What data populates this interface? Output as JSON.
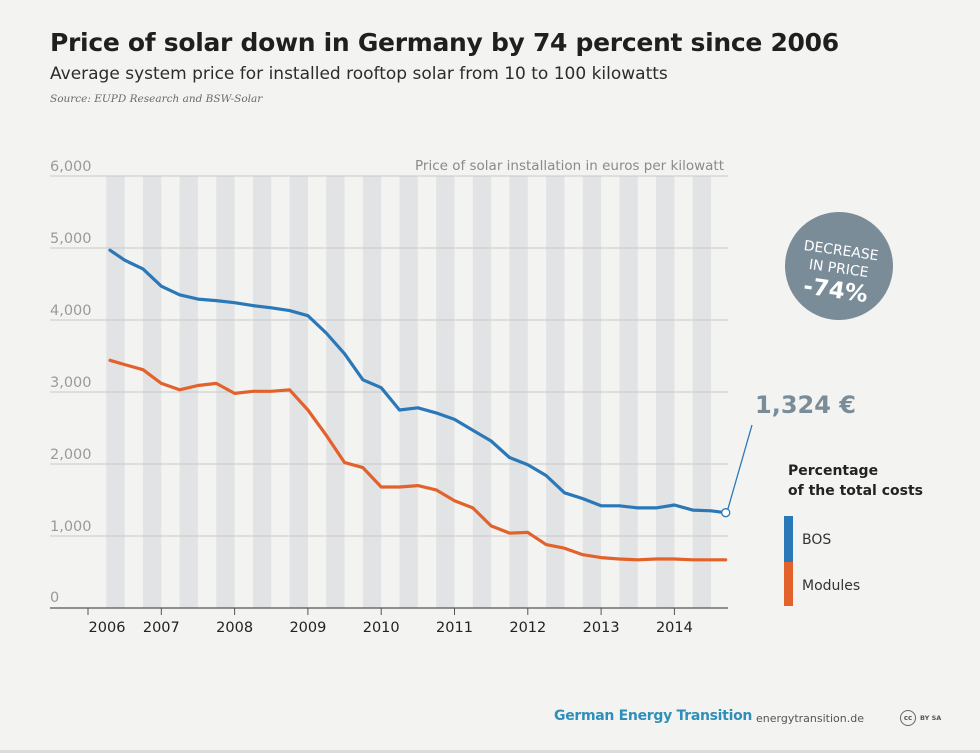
{
  "header": {
    "title": "Price of solar down in Germany by 74 percent since 2006",
    "subtitle": "Average system price for installed rooftop solar from 10 to 100 kilowatts",
    "source": "Source: EUPD Research and BSW-Solar"
  },
  "chart_data": {
    "type": "line",
    "title": "Price of solar down in Germany by 74 percent since 2006",
    "ylabel": "Price of solar installation in euros per kilowatt",
    "ylim": [
      0,
      6000
    ],
    "yticks": [
      "6,000",
      "5,000",
      "4,000",
      "3,000",
      "2,000",
      "1,000",
      "0"
    ],
    "xticks": [
      "2006",
      "2007",
      "2008",
      "2009",
      "2010",
      "2011",
      "2012",
      "2013",
      "2014"
    ],
    "grid": true,
    "legend_title": "Percentage\nof the total costs",
    "legend_position": "right",
    "series": [
      {
        "name": "BOS",
        "color": "#2b78b8",
        "x": [
          2006.3,
          2006.5,
          2006.75,
          2007.0,
          2007.25,
          2007.5,
          2007.75,
          2008.0,
          2008.25,
          2008.5,
          2008.75,
          2009.0,
          2009.25,
          2009.5,
          2009.75,
          2010.0,
          2010.25,
          2010.5,
          2010.75,
          2011.0,
          2011.25,
          2011.5,
          2011.75,
          2012.0,
          2012.25,
          2012.5,
          2012.75,
          2013.0,
          2013.25,
          2013.5,
          2013.75,
          2014.0,
          2014.25,
          2014.5,
          2014.7
        ],
        "values": [
          4970,
          4830,
          4710,
          4470,
          4350,
          4290,
          4270,
          4240,
          4200,
          4170,
          4130,
          4060,
          3820,
          3530,
          3170,
          3060,
          2750,
          2780,
          2710,
          2620,
          2470,
          2320,
          2090,
          1990,
          1840,
          1600,
          1520,
          1420,
          1420,
          1390,
          1390,
          1430,
          1360,
          1350,
          1324
        ]
      },
      {
        "name": "Modules",
        "color": "#e3622c",
        "x": [
          2006.3,
          2006.5,
          2006.75,
          2007.0,
          2007.25,
          2007.5,
          2007.75,
          2008.0,
          2008.25,
          2008.5,
          2008.75,
          2009.0,
          2009.25,
          2009.5,
          2009.75,
          2010.0,
          2010.25,
          2010.5,
          2010.75,
          2011.0,
          2011.25,
          2011.5,
          2011.75,
          2012.0,
          2012.25,
          2012.5,
          2012.75,
          2013.0,
          2013.25,
          2013.5,
          2013.75,
          2014.0,
          2014.25,
          2014.5,
          2014.7
        ],
        "values": [
          3440,
          3380,
          3310,
          3120,
          3030,
          3090,
          3120,
          2980,
          3010,
          3010,
          3030,
          2750,
          2400,
          2020,
          1950,
          1680,
          1680,
          1700,
          1640,
          1490,
          1390,
          1140,
          1040,
          1050,
          880,
          830,
          740,
          700,
          680,
          670,
          680,
          680,
          670,
          670,
          670
        ]
      }
    ],
    "annotations": [
      {
        "label": "1,324 €",
        "value": 1324
      },
      {
        "label": "DECREASE\nIN PRICE\n-74%"
      }
    ]
  },
  "badge": {
    "line1": "DECREASE",
    "line2": "IN PRICE",
    "line3": "-74%",
    "color": "#7a8c98"
  },
  "end_label": "1,324 €",
  "legend": {
    "title_line1": "Percentage",
    "title_line2": "of the total costs",
    "items": [
      "BOS",
      "Modules"
    ]
  },
  "footer": {
    "brand": "German Energy Transition",
    "url": "energytransition.de",
    "license_icon": "cc",
    "license_text": "BY SA"
  }
}
